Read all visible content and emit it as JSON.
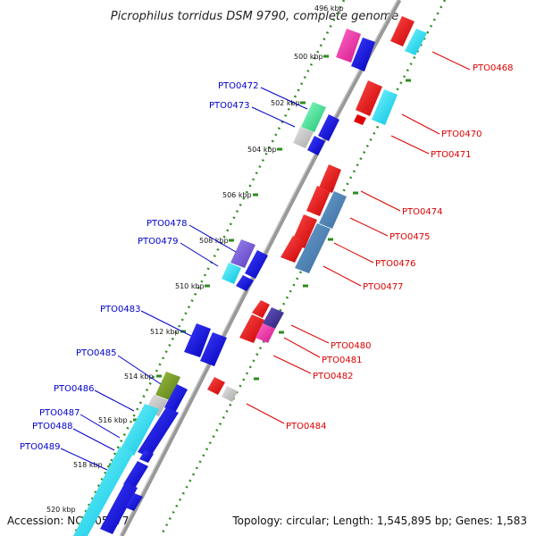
{
  "title": "Picrophilus torridus DSM 9790, complete genome",
  "accession": "Accession: NC_005877",
  "summary": "Topology: circular; Length: 1,545,895 bp; Genes: 1,583",
  "colors": {
    "backbone": "#8a8a8a",
    "dots": "#2e8b1e",
    "tick": "#2e8b1e",
    "label_left": "#0000cc",
    "label_right": "#dd0000"
  },
  "kbp_marks": [
    "496 kbp",
    "500 kbp",
    "502 kbp",
    "504 kbp",
    "506 kbp",
    "508 kbp",
    "510 kbp",
    "512 kbp",
    "514 kbp",
    "516 kbp",
    "518 kbp",
    "520 kbp"
  ],
  "labels_left": [
    "PTO0472",
    "PTO0473",
    "PTO0478",
    "PTO0479",
    "PTO0483",
    "PTO0485",
    "PTO0486",
    "PTO0487",
    "PTO0488",
    "PTO0489"
  ],
  "labels_right": [
    "PTO0468",
    "PTO0470",
    "PTO0471",
    "PTO0474",
    "PTO0475",
    "PTO0476",
    "PTO0477",
    "PTO0480",
    "PTO0481",
    "PTO0482",
    "PTO0484"
  ]
}
